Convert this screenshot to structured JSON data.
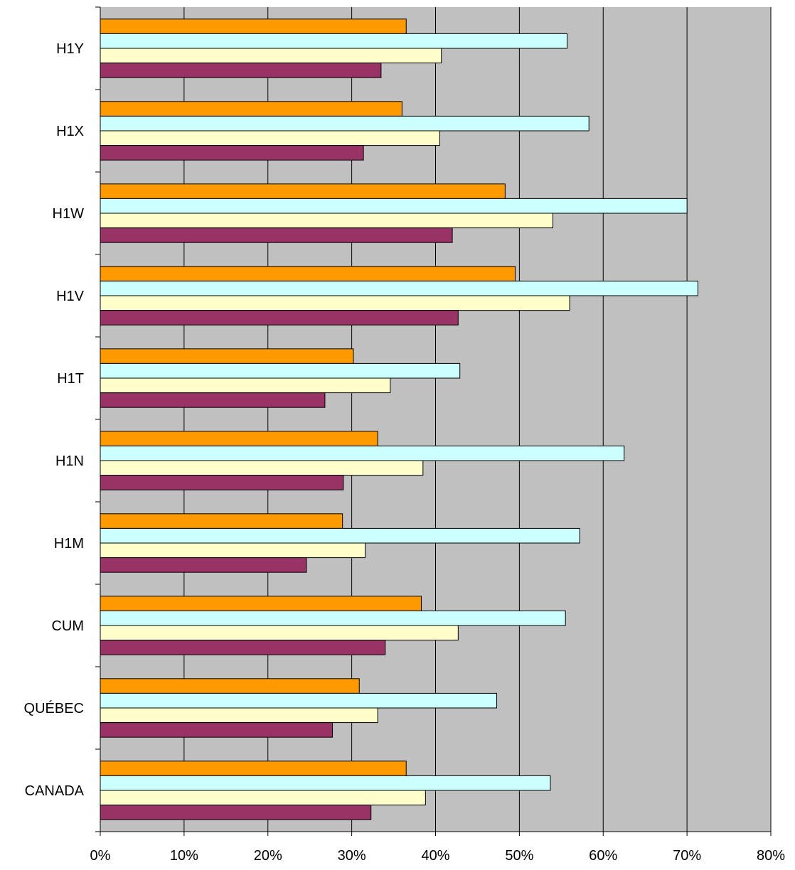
{
  "chart_data": {
    "type": "bar",
    "orientation": "horizontal",
    "categories": [
      "H1Y",
      "H1X",
      "H1W",
      "H1V",
      "H1T",
      "H1N",
      "H1M",
      "CUM",
      "QUÉBEC",
      "CANADA"
    ],
    "series": [
      {
        "color": "#FF9900",
        "values": [
          36.5,
          36.0,
          48.3,
          49.5,
          30.2,
          33.1,
          28.9,
          38.3,
          30.9,
          36.5
        ]
      },
      {
        "color": "#CCFFFF",
        "values": [
          55.7,
          58.3,
          70.0,
          71.3,
          42.9,
          62.5,
          57.2,
          55.5,
          47.3,
          53.7
        ]
      },
      {
        "color": "#FFFFCC",
        "values": [
          40.7,
          40.5,
          54.0,
          56.0,
          34.6,
          38.5,
          31.6,
          42.7,
          33.1,
          38.8
        ]
      },
      {
        "color": "#993366",
        "values": [
          33.5,
          31.4,
          42.0,
          42.7,
          26.8,
          29.0,
          24.6,
          34.0,
          27.7,
          32.3
        ]
      }
    ],
    "xlim": [
      0,
      80
    ],
    "x_ticks": [
      "0%",
      "10%",
      "20%",
      "30%",
      "40%",
      "50%",
      "60%",
      "70%",
      "80%"
    ],
    "grid": "vertical",
    "plot_background": "#C0C0C0",
    "title": "",
    "xlabel": "",
    "ylabel": ""
  }
}
